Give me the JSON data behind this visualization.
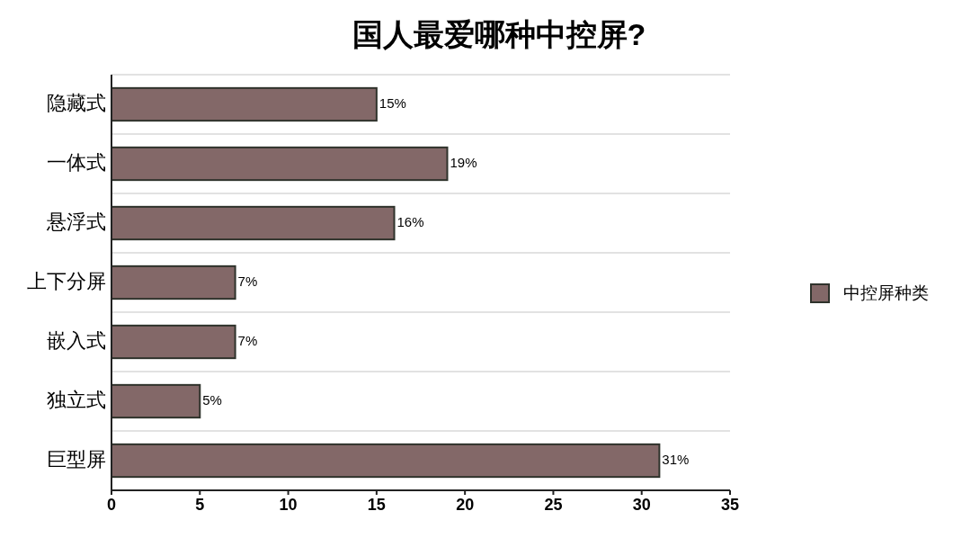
{
  "chart_data": {
    "type": "bar",
    "title": "国人最爱哪种中控屏?",
    "orientation": "horizontal",
    "categories": [
      "隐藏式",
      "一体式",
      "悬浮式",
      "上下分屏",
      "嵌入式",
      "独立式",
      "巨型屏"
    ],
    "series": [
      {
        "name": "中控屏种类",
        "color": "#836868",
        "values": [
          15,
          19,
          16,
          7,
          7,
          5,
          31
        ],
        "value_labels": [
          "15%",
          "19%",
          "16%",
          "7%",
          "7%",
          "5%",
          "31%"
        ]
      }
    ],
    "xlim": [
      0,
      35
    ],
    "xticks": [
      0,
      5,
      10,
      15,
      20,
      25,
      30,
      35
    ],
    "grid": "y",
    "legend": "right"
  }
}
